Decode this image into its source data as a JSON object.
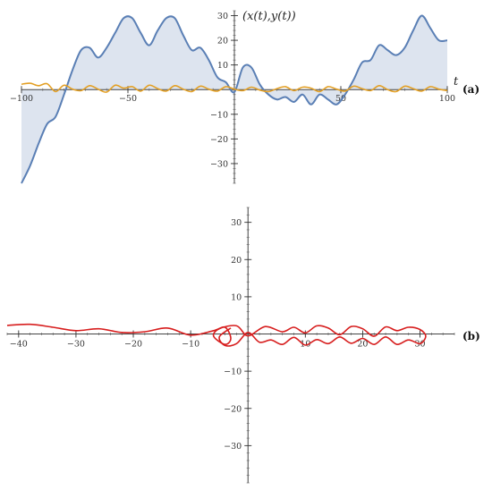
{
  "chart_data": [
    {
      "panel": "(a)",
      "type": "line",
      "title": "",
      "xlabel": "t",
      "ylabel": "(x(t),y(t))",
      "xlim": [
        -100,
        100
      ],
      "ylim": [
        -38,
        32
      ],
      "x_ticks": [
        -100,
        -50,
        50,
        100
      ],
      "x_tick_labels": [
        "−100",
        "−50",
        "50",
        "100"
      ],
      "y_ticks": [
        -30,
        -20,
        -10,
        10,
        20,
        30
      ],
      "y_tick_labels": [
        "−30",
        "−20",
        "−10",
        "10",
        "20",
        "30"
      ],
      "grid": false,
      "colors": {
        "x_series": "#5a7fb5",
        "x_fill": "#dde4ef",
        "y_series": "#e3a026"
      },
      "series": [
        {
          "role": "x(t)",
          "filled_to_axis": true,
          "x": [
            -100,
            -96,
            -92,
            -88,
            -84,
            -80,
            -76,
            -72,
            -68,
            -64,
            -60,
            -56,
            -52,
            -48,
            -44,
            -40,
            -36,
            -32,
            -28,
            -24,
            -20,
            -16,
            -12,
            -8,
            -4,
            0,
            4,
            8,
            12,
            16,
            20,
            24,
            28,
            32,
            36,
            40,
            44,
            48,
            52,
            56,
            60,
            64,
            68,
            72,
            76,
            80,
            84,
            88,
            92,
            96,
            100
          ],
          "y": [
            -38,
            -31,
            -22,
            -14,
            -11,
            -2,
            8,
            16,
            17,
            13,
            17,
            23,
            29,
            29,
            23,
            18,
            24,
            29,
            29,
            22,
            16,
            17,
            12,
            5,
            3,
            -1,
            9,
            9,
            2,
            -2,
            -4,
            -3,
            -5,
            -2,
            -6,
            -2,
            -4,
            -6,
            -2,
            4,
            11,
            12,
            18,
            16,
            14,
            17,
            24,
            30,
            25,
            20,
            20
          ]
        },
        {
          "role": "y(t)",
          "filled_to_axis": false,
          "x": [
            -100,
            -96,
            -92,
            -88,
            -84,
            -80,
            -76,
            -72,
            -68,
            -64,
            -60,
            -56,
            -52,
            -48,
            -44,
            -40,
            -36,
            -32,
            -28,
            -24,
            -20,
            -16,
            -12,
            -8,
            -4,
            0,
            4,
            8,
            12,
            16,
            20,
            24,
            28,
            32,
            36,
            40,
            44,
            48,
            52,
            56,
            60,
            64,
            68,
            72,
            76,
            80,
            84,
            88,
            92,
            96,
            100
          ],
          "y": [
            2.2,
            2.6,
            1.6,
            2.4,
            -0.8,
            1.8,
            0.2,
            -0.4,
            1.6,
            0.2,
            -1.0,
            1.8,
            0.6,
            1.2,
            -0.6,
            1.8,
            0.4,
            -0.6,
            1.6,
            0.2,
            -0.8,
            1.4,
            0.2,
            -0.6,
            1.2,
            0.2,
            -0.4,
            1.0,
            -0.2,
            -0.8,
            0.4,
            1.2,
            -0.4,
            1.0,
            0.6,
            -0.8,
            1.2,
            0.2,
            -0.6,
            1.4,
            0.4,
            -0.4,
            1.6,
            0.0,
            -0.8,
            1.4,
            0.4,
            -0.6,
            1.2,
            0.2,
            -0.4
          ]
        }
      ]
    },
    {
      "panel": "(b)",
      "type": "line",
      "title": "",
      "xlabel": "",
      "ylabel": "",
      "xlim": [
        -42,
        36
      ],
      "ylim": [
        -40,
        34
      ],
      "x_ticks": [
        -40,
        -30,
        -20,
        -10,
        10,
        20,
        30
      ],
      "x_tick_labels": [
        "−40",
        "−30",
        "−20",
        "−10",
        "10",
        "20",
        "30"
      ],
      "y_ticks": [
        -30,
        -20,
        -10,
        10,
        20,
        30
      ],
      "y_tick_labels": [
        "−30",
        "−20",
        "−10",
        "10",
        "20",
        "30"
      ],
      "grid": false,
      "colors": {
        "trajectory": "#d71e1e"
      },
      "series": [
        {
          "role": "trajectory (x(t), y(t))",
          "x": [
            -42,
            -38,
            -34,
            -30,
            -26,
            -22,
            -18,
            -14,
            -10,
            -6,
            -4,
            -3,
            -4,
            -6,
            -5,
            -2,
            0,
            3,
            6,
            8,
            10,
            12,
            14,
            16,
            18,
            20,
            22,
            24,
            26,
            28,
            30,
            31,
            30,
            28,
            26,
            24,
            22,
            20,
            18,
            16,
            14,
            12,
            10,
            8,
            6,
            4,
            2,
            0,
            -2,
            -4,
            -5,
            -3
          ],
          "y": [
            2.3,
            2.6,
            1.8,
            0.9,
            1.4,
            0.4,
            0.6,
            1.6,
            -0.3,
            0.9,
            1.8,
            -1.2,
            -2.8,
            -0.6,
            1.4,
            2.2,
            -0.5,
            2.0,
            0.6,
            1.8,
            0.3,
            2.2,
            1.6,
            -0.2,
            2.0,
            1.4,
            -0.6,
            1.9,
            0.9,
            1.8,
            1.2,
            -0.6,
            -2.6,
            -1.6,
            -2.8,
            -0.8,
            -2.8,
            -1.2,
            -2.5,
            -0.8,
            -2.6,
            -1.5,
            -3.0,
            -0.9,
            -2.8,
            -1.6,
            -2.2,
            0.4,
            -2.6,
            -3.1,
            -0.8,
            1.6
          ]
        }
      ]
    }
  ],
  "labels": {
    "panel_a": "(a)",
    "panel_b": "(b)",
    "axis_a_x": "t",
    "axis_a_y": "(x(t),y(t))"
  }
}
